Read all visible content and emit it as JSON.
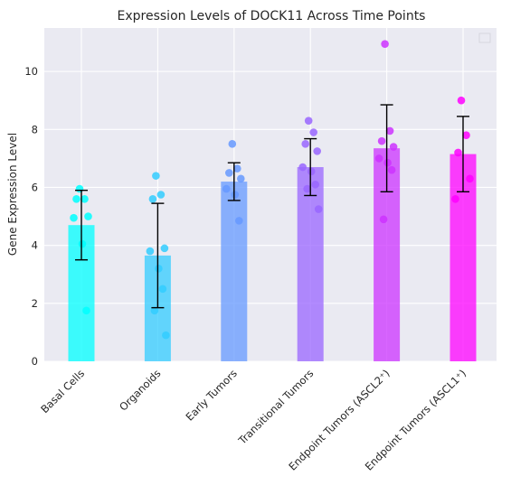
{
  "chart_data": {
    "type": "bar",
    "title": "Expression Levels of DOCK11 Across Time Points",
    "xlabel": "",
    "ylabel": "Gene Expression Level",
    "ylim": [
      0,
      11.5
    ],
    "yticks": [
      0,
      2,
      4,
      6,
      8,
      10
    ],
    "grid": true,
    "legend": {
      "placement": "top-right",
      "entries": []
    },
    "categories": [
      "Basal Cells",
      "Organoids",
      "Early Tumors",
      "Transitional Tumors",
      "Endpoint Tumors (ASCL2⁺)",
      "Endpoint Tumors (ASCL1⁺)"
    ],
    "values": [
      4.7,
      3.65,
      6.2,
      6.7,
      7.35,
      7.15
    ],
    "errors": [
      1.2,
      1.8,
      0.65,
      0.98,
      1.5,
      1.3
    ],
    "colors": [
      "#00ffff",
      "#33ccff",
      "#6699ff",
      "#9966ff",
      "#cc33ff",
      "#ff00ff"
    ],
    "points": [
      [
        5.95,
        5.6,
        5.6,
        5.0,
        4.95,
        4.05,
        1.75
      ],
      [
        6.4,
        5.75,
        5.6,
        3.9,
        3.8,
        3.2,
        2.5,
        1.75,
        0.9
      ],
      [
        7.5,
        6.65,
        6.5,
        6.3,
        5.95,
        5.75,
        4.85
      ],
      [
        8.3,
        7.9,
        7.5,
        7.25,
        6.7,
        6.55,
        6.1,
        5.95,
        5.25
      ],
      [
        10.95,
        7.95,
        7.6,
        7.4,
        7.0,
        6.85,
        6.6,
        4.9
      ],
      [
        9.0,
        7.8,
        7.2,
        6.3,
        5.6
      ]
    ]
  }
}
